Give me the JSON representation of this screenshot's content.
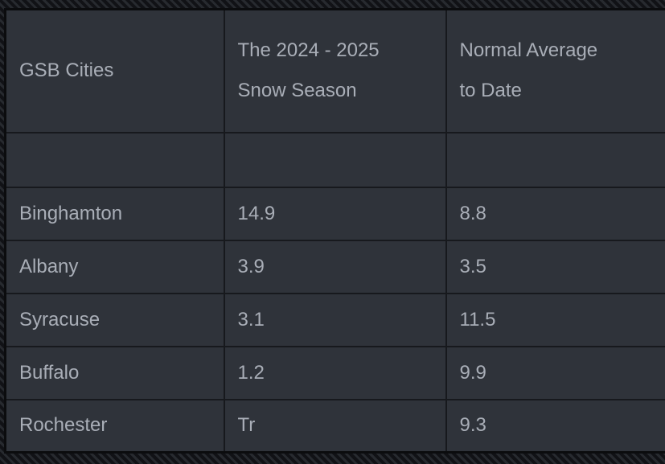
{
  "table": {
    "headers": [
      {
        "line1": "GSB Cities",
        "line2": ""
      },
      {
        "line1": "The 2024 - 2025",
        "line2": "Snow Season"
      },
      {
        "line1": "Normal Average",
        "line2": "to Date"
      }
    ],
    "rows": [
      {
        "city": "Binghamton",
        "snow_season": "14.9",
        "normal_avg": "8.8"
      },
      {
        "city": "Albany",
        "snow_season": "3.9",
        "normal_avg": "3.5"
      },
      {
        "city": "Syracuse",
        "snow_season": "3.1",
        "normal_avg": "11.5"
      },
      {
        "city": "Buffalo",
        "snow_season": "1.2",
        "normal_avg": "9.9"
      },
      {
        "city": "Rochester",
        "snow_season": "Tr",
        "normal_avg": "9.3"
      }
    ]
  },
  "chart_data": {
    "type": "table",
    "columns": [
      "GSB Cities",
      "The 2024 - 2025 Snow Season",
      "Normal Average to Date"
    ],
    "rows": [
      [
        "Binghamton",
        14.9,
        8.8
      ],
      [
        "Albany",
        3.9,
        3.5
      ],
      [
        "Syracuse",
        3.1,
        11.5
      ],
      [
        "Buffalo",
        1.2,
        9.9
      ],
      [
        "Rochester",
        "Tr",
        9.3
      ]
    ]
  },
  "colors": {
    "cell_background": "#2f333a",
    "text": "#a9aeb7",
    "cell_border": "#17191d",
    "outer_border": "#0b0c0e",
    "backdrop_stripe_dark": "#111216",
    "backdrop_stripe_light": "#272a2f"
  }
}
